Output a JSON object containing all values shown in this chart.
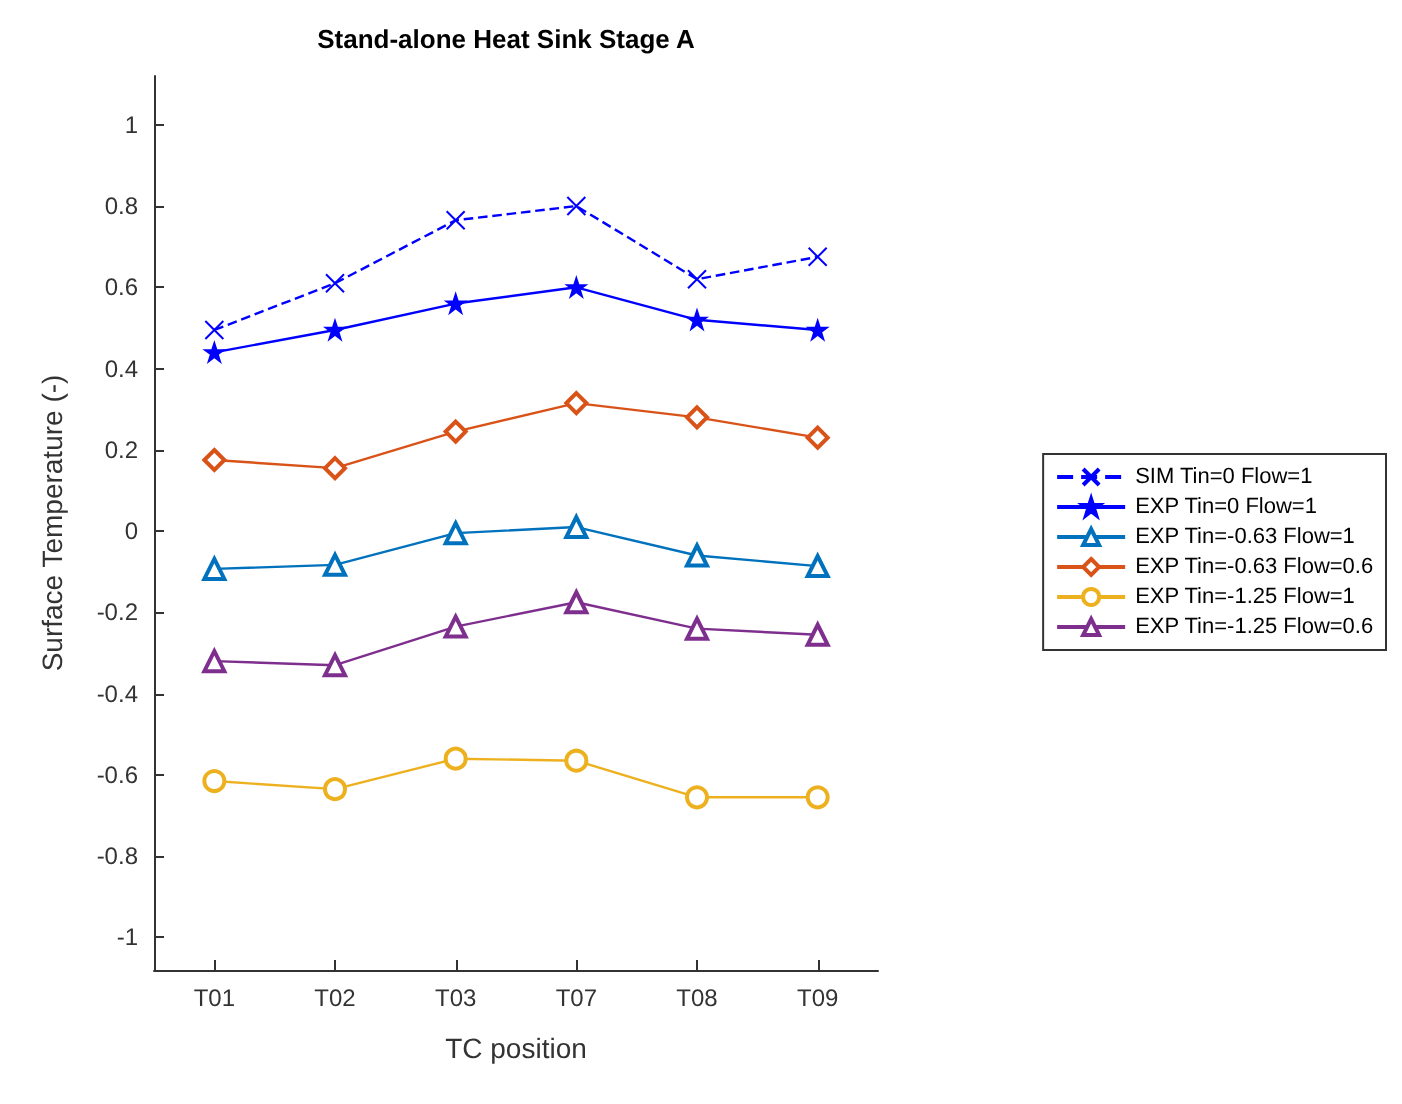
{
  "chart_data": {
    "type": "line",
    "title": "Stand-alone Heat Sink Stage A",
    "xlabel": "TC position",
    "ylabel": "Surface Temperature (-)",
    "categories": [
      "T01",
      "T02",
      "T03",
      "T07",
      "T08",
      "T09"
    ],
    "ylim": [
      -1.08,
      1.12
    ],
    "yticks": [
      -1,
      -0.8,
      -0.6,
      -0.4,
      -0.2,
      0,
      0.2,
      0.4,
      0.6,
      0.8,
      1
    ],
    "grid": false,
    "legend": "right",
    "series": [
      {
        "name": "SIM Tin=0 Flow=1",
        "color": "#0000ff",
        "marker": "cross",
        "line_style": "dashed",
        "values": [
          0.495,
          0.61,
          0.765,
          0.8,
          0.62,
          0.675
        ]
      },
      {
        "name": "EXP Tin=0 Flow=1",
        "color": "#0000ff",
        "marker": "star",
        "line_style": "solid",
        "values": [
          0.44,
          0.495,
          0.56,
          0.6,
          0.52,
          0.495
        ]
      },
      {
        "name": "EXP Tin=-0.63 Flow=1",
        "color": "#0072bd",
        "marker": "triangle",
        "line_style": "solid",
        "values": [
          -0.093,
          -0.083,
          -0.005,
          0.01,
          -0.06,
          -0.086
        ]
      },
      {
        "name": "EXP Tin=-0.63 Flow=0.6",
        "color": "#d95319",
        "marker": "diamond",
        "line_style": "solid",
        "values": [
          0.175,
          0.155,
          0.245,
          0.315,
          0.28,
          0.23
        ]
      },
      {
        "name": "EXP Tin=-1.25 Flow=1",
        "color": "#edb120",
        "marker": "circle",
        "line_style": "solid",
        "values": [
          -0.615,
          -0.635,
          -0.56,
          -0.565,
          -0.655,
          -0.655
        ]
      },
      {
        "name": "EXP Tin=-1.25 Flow=0.6",
        "color": "#7e2f8e",
        "marker": "triangle",
        "line_style": "solid",
        "values": [
          -0.32,
          -0.33,
          -0.235,
          -0.175,
          -0.24,
          -0.255
        ]
      }
    ]
  }
}
